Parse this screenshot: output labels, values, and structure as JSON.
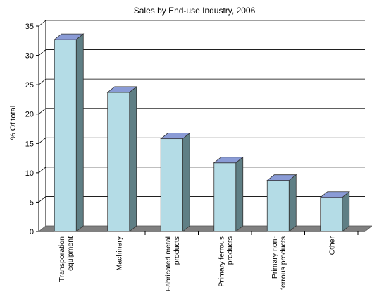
{
  "chart_data": {
    "type": "bar",
    "title": "Sales by End-use Industry, 2006",
    "xlabel": "",
    "ylabel": "% Of total",
    "categories": [
      [
        "Transporation",
        "equipment"
      ],
      [
        "Machinery"
      ],
      [
        "Fabricated metal",
        "products"
      ],
      [
        "Primary ferrous",
        "products"
      ],
      [
        "Primary non-",
        "ferrous products"
      ],
      [
        "Other"
      ]
    ],
    "values": [
      32.7,
      23.7,
      15.8,
      11.7,
      8.7,
      5.8
    ],
    "ylim": [
      0,
      35
    ],
    "yticks": [
      "0",
      "5",
      "10",
      "15",
      "20",
      "25",
      "30",
      "35"
    ],
    "grid": true,
    "style": "3d",
    "colors": {
      "bar_front": "#b4dce6",
      "bar_side": "#5f7f85",
      "bar_top": "#8a9bd6",
      "floor": "#808080"
    }
  }
}
